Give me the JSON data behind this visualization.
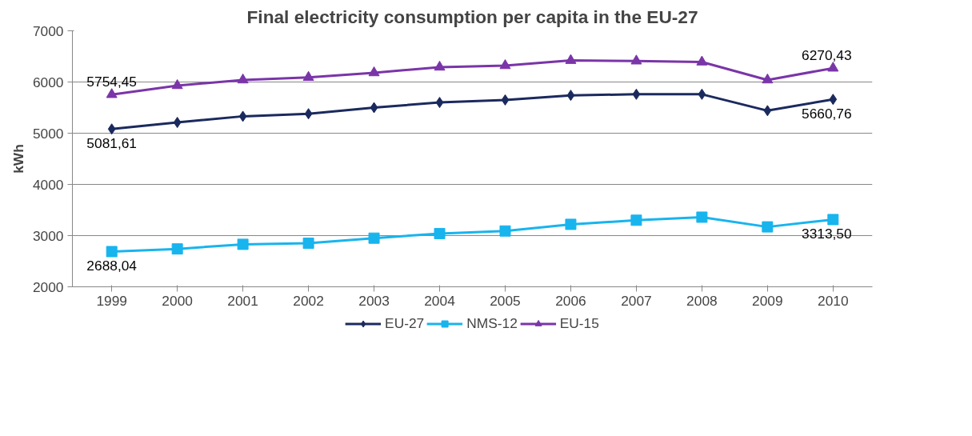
{
  "chart_data": {
    "type": "line",
    "title": "Final electricity consumption per capita in the EU-27",
    "ylabel": "kWh",
    "categories": [
      "1999",
      "2000",
      "2001",
      "2002",
      "2003",
      "2004",
      "2005",
      "2006",
      "2007",
      "2008",
      "2009",
      "2010"
    ],
    "ylim": [
      2000,
      7000
    ],
    "yticks": [
      2000,
      3000,
      4000,
      5000,
      6000,
      7000
    ],
    "grid": "y",
    "legend": "bottom",
    "series": [
      {
        "name": "EU-27",
        "color": "#1b2a5e",
        "marker": "diamond",
        "values": [
          5081.61,
          5210,
          5330,
          5380,
          5500,
          5600,
          5650,
          5740,
          5760,
          5760,
          5440,
          5660.76
        ],
        "value_labels": [
          "5081,61",
          null,
          null,
          null,
          null,
          null,
          null,
          null,
          null,
          null,
          null,
          "5660,76"
        ]
      },
      {
        "name": "NMS-12",
        "color": "#18b4ee",
        "marker": "square",
        "values": [
          2688.04,
          2740,
          2830,
          2850,
          2950,
          3040,
          3090,
          3220,
          3300,
          3360,
          3170,
          3313.5
        ],
        "value_labels": [
          "2688,04",
          null,
          null,
          null,
          null,
          null,
          null,
          null,
          null,
          null,
          null,
          "3313,50"
        ]
      },
      {
        "name": "EU-15",
        "color": "#7a35a8",
        "marker": "triangle",
        "values": [
          5754.45,
          5930,
          6040,
          6090,
          6180,
          6290,
          6320,
          6420,
          6410,
          6390,
          6040,
          6270.43
        ],
        "value_labels": [
          "5754,45",
          null,
          null,
          null,
          null,
          null,
          null,
          null,
          null,
          null,
          null,
          "6270,43"
        ]
      }
    ]
  }
}
